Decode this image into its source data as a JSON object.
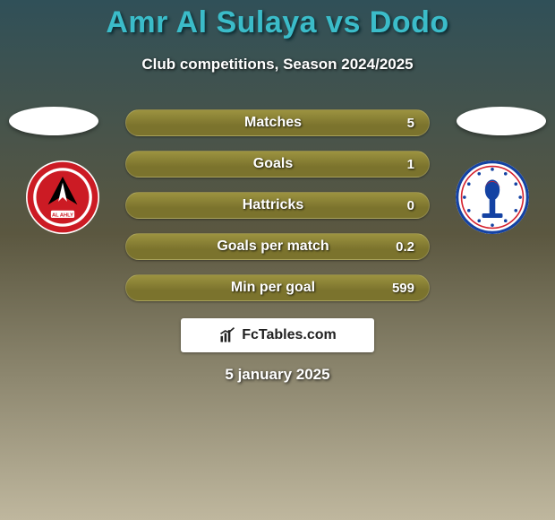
{
  "title": "Amr Al Sulaya vs Dodo",
  "title_color": "#3bbcc9",
  "title_shadow": "#0a2a30",
  "subtitle": "Club competitions, Season 2024/2025",
  "date": "5 january 2025",
  "background": {
    "bg_color": "#8a8270",
    "overlay_top": "#305058",
    "overlay_mid": "#5b5740",
    "overlay_bottom": "#bfb79e"
  },
  "player_left": {
    "avatar_bg": "#ffffff",
    "club_name": "Al Ahly",
    "club_colors": {
      "primary": "#cc1b24",
      "accent": "#ffffff",
      "icon": "#000000"
    }
  },
  "player_right": {
    "avatar_bg": "#ffffff",
    "club_name": "Smouha",
    "club_colors": {
      "primary": "#1442a3",
      "accent": "#ffffff",
      "ring": "#d5232f"
    }
  },
  "stat_rows": [
    {
      "label": "Matches",
      "value": "5"
    },
    {
      "label": "Goals",
      "value": "1"
    },
    {
      "label": "Hattricks",
      "value": "0"
    },
    {
      "label": "Goals per match",
      "value": "0.2"
    },
    {
      "label": "Min per goal",
      "value": "599"
    }
  ],
  "stat_style": {
    "row_bg": "#7b732d",
    "row_bg_gradient_hi": "#9c9340",
    "label_fontsize": 16,
    "value_fontsize": 15,
    "text_color": "#ffffff"
  },
  "fctables": {
    "text": "FcTables.com",
    "bg": "#ffffff",
    "fg": "#222222"
  }
}
